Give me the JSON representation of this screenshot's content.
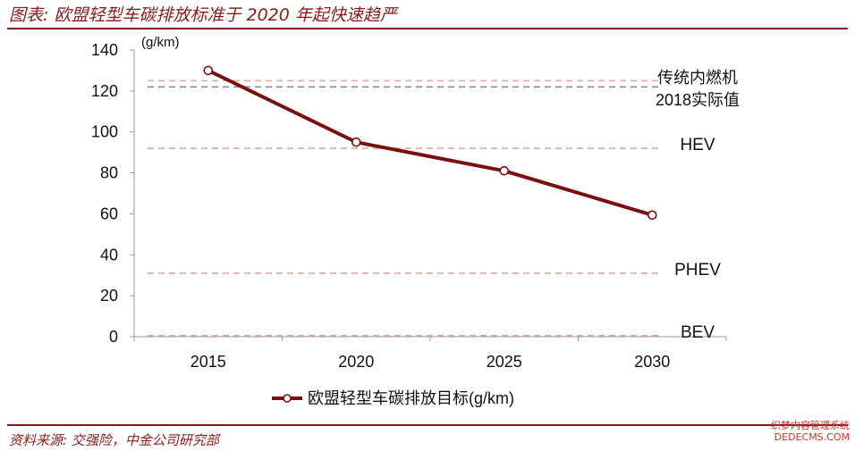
{
  "header": {
    "title": "图表: 欧盟轻型车碳排放标准于 2020 年起快速趋严"
  },
  "footer": {
    "source": "资料来源: 交强险，中金公司研究部"
  },
  "watermark": {
    "line1": "织梦内容管理系统",
    "line2": "DEDECMS.COM"
  },
  "colors": {
    "brand": "#8b1a1a",
    "series_line": "#7b0f0f",
    "reference_pink": "#e8a898",
    "reference_gray": "#8c8c8c"
  },
  "chart_data": {
    "type": "line",
    "unit_label": "(g/km)",
    "categories": [
      "2015",
      "2020",
      "2025",
      "2030"
    ],
    "series": [
      {
        "name": "欧盟轻型车碳排放目标(g/km)",
        "values": [
          130,
          95,
          81,
          59.4
        ]
      }
    ],
    "reference_lines": [
      {
        "value": 125,
        "style": "pink",
        "label": ""
      },
      {
        "value": 122,
        "style": "gray",
        "label": ""
      },
      {
        "value": 92,
        "style": "pink",
        "label": "HEV"
      },
      {
        "value": 31,
        "style": "pink",
        "label": "PHEV"
      },
      {
        "value": 0.5,
        "style": "pink",
        "label": "BEV"
      }
    ],
    "ice_label_lines": [
      "传统内燃机",
      "2018实际值"
    ],
    "yticks": [
      0,
      20,
      40,
      60,
      80,
      100,
      120,
      140
    ],
    "ylim": [
      0,
      140
    ],
    "grid": false,
    "legend_position": "bottom"
  }
}
